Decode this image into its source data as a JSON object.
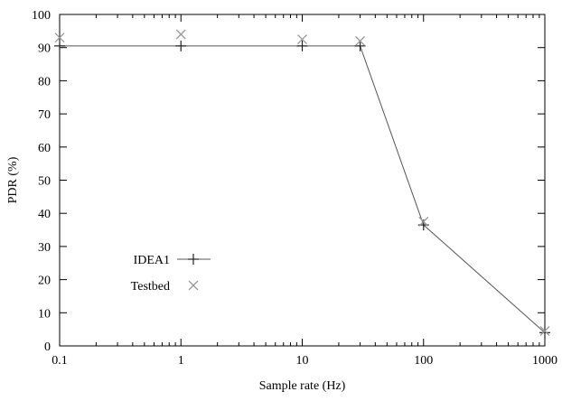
{
  "chart_data": {
    "type": "line",
    "title": "",
    "xlabel": "Sample rate (Hz)",
    "ylabel": "PDR (%)",
    "xscale": "log",
    "xlim": [
      0.1,
      1000
    ],
    "ylim": [
      0,
      100
    ],
    "xticks": [
      {
        "value": 0.1,
        "label": "0.1"
      },
      {
        "value": 1,
        "label": "1"
      },
      {
        "value": 10,
        "label": "10"
      },
      {
        "value": 100,
        "label": "100"
      },
      {
        "value": 1000,
        "label": "1000"
      }
    ],
    "yticks": [
      0,
      10,
      20,
      30,
      40,
      50,
      60,
      70,
      80,
      90,
      100
    ],
    "grid": false,
    "legend_position": "bottom-left",
    "series": [
      {
        "name": "IDEA1",
        "style": "line-plus",
        "color": "#555555",
        "x": [
          0.1,
          1,
          10,
          30,
          100,
          1000
        ],
        "y": [
          90.5,
          90.5,
          90.5,
          90.5,
          36.5,
          4
        ]
      },
      {
        "name": "Testbed",
        "style": "cross",
        "color": "#9a9a9a",
        "x": [
          0.1,
          1,
          10,
          30,
          100,
          1000
        ],
        "y": [
          93,
          94,
          92.5,
          92,
          37.5,
          4.5
        ]
      }
    ]
  }
}
